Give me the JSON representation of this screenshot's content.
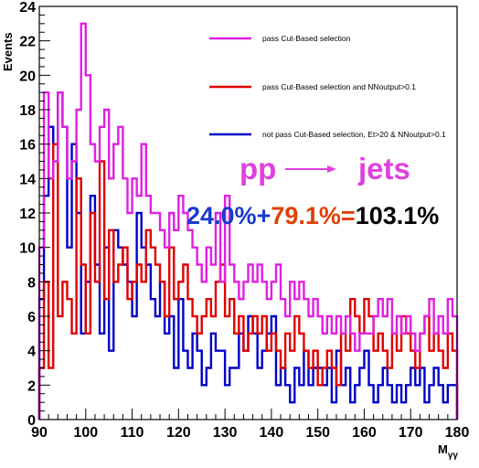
{
  "chart_data": {
    "type": "histogram",
    "xlim": [
      90,
      180
    ],
    "ylim": [
      0,
      24
    ],
    "bin_width": 1,
    "xticks": [
      "90",
      "100",
      "110",
      "120",
      "130",
      "140",
      "150",
      "160",
      "170",
      "180"
    ],
    "yticks": [
      "0",
      "2",
      "4",
      "6",
      "8",
      "10",
      "12",
      "14",
      "16",
      "18",
      "20",
      "22",
      "24"
    ],
    "ylabel": "Events",
    "xlabel": "M",
    "xlabel_sub": "γγ",
    "grid": false,
    "legend_position": "top-right",
    "colors": {
      "magenta": "#e020e0",
      "red": "#e00000",
      "blue": "#0000c8"
    },
    "annotation": {
      "reaction_left": "pp",
      "reaction_right": "jets",
      "reaction_color": "#e040e0",
      "eq_a": "24.0%",
      "eq_plus": "+",
      "eq_b": "79.1%",
      "eq_equals": "=",
      "eq_c": "103.1%",
      "eq_a_color": "#1a3acc",
      "eq_b_color": "#e04000",
      "eq_c_color": "#000000"
    },
    "series": [
      {
        "name": "pass Cut-Based selection",
        "color": "#e020e0",
        "values": [
          10,
          19,
          14,
          15,
          19,
          17,
          14,
          15,
          18,
          23,
          20,
          16,
          15,
          17,
          18,
          14,
          16,
          17,
          14,
          12,
          14,
          13,
          16,
          13,
          12,
          12,
          11,
          10,
          12,
          11,
          13,
          12,
          11,
          10,
          9,
          8,
          10,
          9,
          12,
          8,
          13,
          9,
          8,
          7,
          8,
          9,
          8,
          9,
          8,
          7,
          8,
          9,
          7,
          6,
          8,
          7,
          8,
          7,
          6,
          7,
          6,
          5,
          6,
          5,
          6,
          5,
          6,
          5,
          4,
          5,
          5,
          5,
          6,
          7,
          6,
          7,
          5,
          6,
          5,
          6,
          5,
          4,
          5,
          6,
          7,
          5,
          6,
          5,
          7,
          6
        ]
      },
      {
        "name": "pass Cut-Based selection and NNoutput>0.1",
        "color": "#e00000",
        "values": [
          3,
          8,
          3,
          16,
          6,
          8,
          7,
          5,
          14,
          9,
          5,
          12,
          8,
          15,
          7,
          11,
          8,
          9,
          10,
          7,
          8,
          9,
          8,
          11,
          10,
          9,
          8,
          6,
          10,
          7,
          8,
          9,
          7,
          6,
          5,
          6,
          7,
          6,
          8,
          9,
          6,
          7,
          5,
          6,
          4,
          5,
          6,
          5,
          6,
          4,
          5,
          4,
          3,
          5,
          4,
          6,
          5,
          4,
          3,
          4,
          2,
          3,
          4,
          3,
          2,
          5,
          4,
          7,
          6,
          5,
          7,
          6,
          4,
          5,
          4,
          3,
          5,
          4,
          6,
          5,
          4,
          3,
          5,
          6,
          4,
          5,
          4,
          3,
          5,
          4
        ]
      },
      {
        "name": "not pass Cut-Based selection, Et>20 & NNoutput>0.1",
        "color": "#0000c8",
        "values": [
          7,
          13,
          17,
          16,
          19,
          17,
          10,
          16,
          12,
          5,
          8,
          13,
          9,
          5,
          10,
          4,
          11,
          10,
          9,
          8,
          6,
          12,
          10,
          9,
          7,
          6,
          8,
          5,
          6,
          3,
          7,
          4,
          3,
          5,
          4,
          2,
          3,
          5,
          4,
          4,
          2,
          3,
          3,
          5,
          4,
          6,
          5,
          3,
          4,
          5,
          6,
          2,
          3,
          2,
          1,
          3,
          2,
          4,
          2,
          3,
          3,
          2,
          3,
          1,
          4,
          2,
          3,
          1,
          2,
          3,
          4,
          2,
          1,
          2,
          3,
          2,
          1,
          2,
          1,
          2,
          3,
          2,
          3,
          1,
          2,
          3,
          2,
          1,
          2,
          2
        ]
      }
    ]
  }
}
